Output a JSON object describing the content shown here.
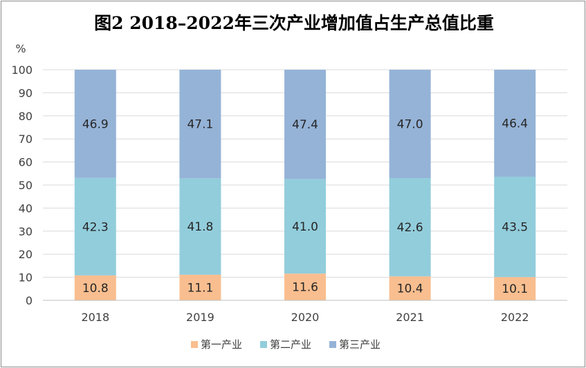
{
  "chart_data": {
    "type": "bar",
    "stacked": true,
    "title": "图2 2018–2022年三次产业增加值占生产总值比重",
    "ylabel": "%",
    "xlabel": "",
    "ylim": [
      0,
      100
    ],
    "yticks": [
      0,
      10,
      20,
      30,
      40,
      50,
      60,
      70,
      80,
      90,
      100
    ],
    "grid": true,
    "legend_position": "bottom",
    "categories": [
      "2018",
      "2019",
      "2020",
      "2021",
      "2022"
    ],
    "series": [
      {
        "name": "第一产业",
        "color": "#F9BE8F",
        "values": [
          10.8,
          11.1,
          11.6,
          10.4,
          10.1
        ]
      },
      {
        "name": "第二产业",
        "color": "#92CDDC",
        "values": [
          42.3,
          41.8,
          41.0,
          42.6,
          43.5
        ]
      },
      {
        "name": "第三产业",
        "color": "#95B3D7",
        "values": [
          46.9,
          47.1,
          47.4,
          47.0,
          46.4
        ]
      }
    ],
    "value_labels": [
      [
        "10.8",
        "11.1",
        "11.6",
        "10.4",
        "10.1"
      ],
      [
        "42.3",
        "41.8",
        "41.0",
        "42.6",
        "43.5"
      ],
      [
        "46.9",
        "47.1",
        "47.4",
        "47.0",
        "46.4"
      ]
    ]
  }
}
